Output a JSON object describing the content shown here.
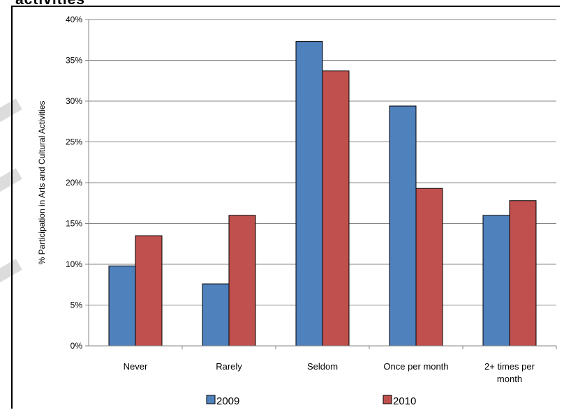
{
  "chart_data": {
    "type": "bar",
    "title": "",
    "partial_title": "activities",
    "ylabel": "% Participation in Arts and Cultural Activities",
    "xlabel": "",
    "categories": [
      "Never",
      "Rarely",
      "Seldom",
      "Once per month",
      "2+ times per month"
    ],
    "series": [
      {
        "name": "2009",
        "color": "#4f81bd",
        "values": [
          9.8,
          7.6,
          37.3,
          29.4,
          16.0
        ]
      },
      {
        "name": "2010",
        "color": "#c0504d",
        "values": [
          13.5,
          16.0,
          33.7,
          19.3,
          17.8
        ]
      }
    ],
    "ylim": [
      0,
      40
    ],
    "yticks": [
      "0%",
      "5%",
      "10%",
      "15%",
      "20%",
      "25%",
      "30%",
      "35%",
      "40%"
    ],
    "grid": true,
    "legend_position": "bottom"
  }
}
